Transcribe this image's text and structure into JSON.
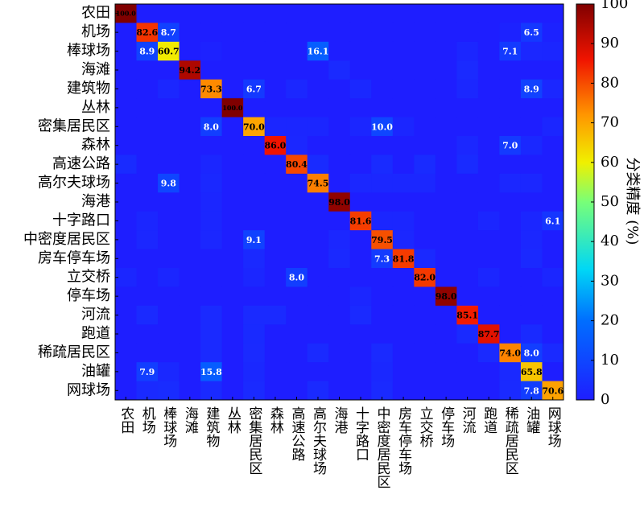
{
  "chart_data": {
    "type": "heatmap",
    "categories": [
      "农田",
      "机场",
      "棒球场",
      "海滩",
      "建筑物",
      "丛林",
      "密集居民区",
      "森林",
      "高速公路",
      "高尔夫球场",
      "海港",
      "十字路口",
      "中密度居民区",
      "房车停车场",
      "立交桥",
      "停车场",
      "河流",
      "跑道",
      "稀疏居民区",
      "油罐",
      "网球场"
    ],
    "values": [
      [
        100.0,
        0,
        0,
        0,
        0,
        0,
        0,
        0,
        0,
        0,
        0,
        0,
        0,
        0,
        0,
        0,
        0,
        0,
        0,
        0,
        0
      ],
      [
        0,
        82.6,
        8.7,
        0,
        0,
        0,
        0,
        0,
        0,
        0,
        0,
        0,
        0,
        0,
        0,
        0,
        0,
        0,
        1.1,
        6.5,
        1.1
      ],
      [
        0,
        8.9,
        60.7,
        0,
        1.0,
        0,
        0,
        0,
        0,
        16.1,
        0,
        0,
        0,
        0,
        0,
        0,
        2.0,
        0,
        7.1,
        2.2,
        2.0
      ],
      [
        0,
        0,
        0,
        94.2,
        0,
        0,
        0,
        0,
        0,
        0,
        2.9,
        0,
        0,
        0,
        0,
        0,
        2.9,
        0,
        0,
        0,
        0
      ],
      [
        0,
        0,
        2.2,
        0,
        73.3,
        0,
        6.7,
        0,
        2.2,
        0,
        0,
        2.5,
        0,
        0,
        0,
        0,
        2.2,
        0,
        0,
        8.9,
        2.2
      ],
      [
        0,
        0,
        0,
        0,
        0,
        100.0,
        0,
        0,
        0,
        0,
        0,
        0,
        0,
        0,
        0,
        0,
        0,
        0,
        0,
        0,
        0
      ],
      [
        0,
        0,
        0,
        0,
        8.0,
        0,
        70.0,
        2.0,
        2.0,
        2.0,
        0,
        2.0,
        10.0,
        2.0,
        0,
        0,
        0,
        0,
        0,
        0,
        2.0
      ],
      [
        0,
        0,
        0,
        0,
        0,
        0,
        0,
        86.0,
        2.3,
        0,
        0,
        0,
        0,
        0,
        0,
        0,
        2.3,
        0,
        7.0,
        2.4,
        0
      ],
      [
        3.3,
        0,
        0,
        0,
        2.1,
        0,
        0,
        0,
        80.4,
        3.3,
        0,
        0,
        3.3,
        0,
        3.3,
        0,
        3.3,
        0,
        0,
        0,
        0
      ],
      [
        0,
        0,
        9.8,
        0,
        2.5,
        0,
        0,
        0,
        0,
        74.5,
        0,
        2.2,
        2.2,
        2.2,
        2.2,
        0,
        0,
        0,
        2.2,
        2.2,
        0
      ],
      [
        0,
        0,
        0,
        0,
        2.0,
        0,
        0,
        0,
        0,
        0,
        98.0,
        0,
        0,
        0,
        0,
        0,
        0,
        0,
        0,
        0,
        0
      ],
      [
        0,
        2.1,
        0,
        0,
        2.1,
        0,
        0,
        0,
        0,
        0,
        0,
        81.6,
        2.1,
        2.0,
        0,
        0,
        0,
        2.0,
        0,
        2.0,
        6.1
      ],
      [
        0,
        2.3,
        0,
        0,
        2.3,
        0,
        9.1,
        0,
        0,
        0,
        2.3,
        0,
        79.5,
        2.3,
        0,
        0,
        0,
        0,
        0,
        2.2,
        0
      ],
      [
        0,
        0,
        0,
        0,
        0,
        0,
        2.7,
        0,
        0,
        0,
        2.7,
        0,
        7.3,
        81.8,
        2.8,
        0,
        0,
        0,
        0,
        2.7,
        0
      ],
      [
        2.0,
        0,
        2.0,
        0,
        0,
        0,
        2.0,
        0,
        8.0,
        0,
        0,
        0,
        0,
        0,
        82.0,
        0,
        0,
        2.0,
        0,
        0,
        2.0
      ],
      [
        0,
        0,
        0,
        0,
        0,
        0,
        0,
        0,
        0,
        0,
        0,
        2.0,
        0,
        0,
        0,
        98.0,
        0,
        0,
        0,
        0,
        0
      ],
      [
        0,
        3.0,
        0,
        0,
        3.0,
        0,
        3.0,
        3.0,
        0,
        0,
        0,
        3.0,
        0,
        0,
        0,
        0,
        85.1,
        0,
        0,
        0,
        0
      ],
      [
        0,
        0,
        0,
        0,
        3.0,
        0,
        3.1,
        0,
        0,
        0,
        0,
        0,
        0,
        0,
        0,
        0,
        3.1,
        87.7,
        0,
        3.1,
        0
      ],
      [
        0,
        0,
        0,
        0,
        3.0,
        0,
        3.0,
        0,
        0,
        3.0,
        0,
        0,
        3.0,
        0,
        0,
        0,
        0,
        3.0,
        74.0,
        8.0,
        3.0
      ],
      [
        0,
        7.9,
        2.6,
        0,
        15.8,
        0,
        2.6,
        0,
        0,
        0,
        0,
        0,
        2.6,
        0,
        0,
        0,
        0,
        0,
        2.7,
        65.8,
        0
      ],
      [
        0,
        3.0,
        3.6,
        0,
        3.0,
        0,
        3.0,
        0,
        0,
        3.0,
        0,
        0,
        3.0,
        0,
        0,
        0,
        0,
        0,
        3.0,
        7.8,
        70.6
      ]
    ],
    "value_labels": [
      [
        "100.0",
        null,
        null,
        null,
        null,
        null,
        null,
        null,
        null,
        null,
        null,
        null,
        null,
        null,
        null,
        null,
        null,
        null,
        null,
        null,
        null
      ],
      [
        null,
        "82.6",
        "8.7",
        null,
        null,
        null,
        null,
        null,
        null,
        null,
        null,
        null,
        null,
        null,
        null,
        null,
        null,
        null,
        null,
        "6.5",
        null
      ],
      [
        null,
        "8.9",
        "60.7",
        null,
        null,
        null,
        null,
        null,
        null,
        "16.1",
        null,
        null,
        null,
        null,
        null,
        null,
        null,
        null,
        "7.1",
        null,
        null
      ],
      [
        null,
        null,
        null,
        "94.2",
        null,
        null,
        null,
        null,
        null,
        null,
        null,
        null,
        null,
        null,
        null,
        null,
        null,
        null,
        null,
        null,
        null
      ],
      [
        null,
        null,
        null,
        null,
        "73.3",
        null,
        "6.7",
        null,
        null,
        null,
        null,
        null,
        null,
        null,
        null,
        null,
        null,
        null,
        null,
        "8.9",
        null
      ],
      [
        null,
        null,
        null,
        null,
        null,
        "100.0",
        null,
        null,
        null,
        null,
        null,
        null,
        null,
        null,
        null,
        null,
        null,
        null,
        null,
        null,
        null
      ],
      [
        null,
        null,
        null,
        null,
        "8.0",
        null,
        "70.0",
        null,
        null,
        null,
        null,
        null,
        "10.0",
        null,
        null,
        null,
        null,
        null,
        null,
        null,
        null
      ],
      [
        null,
        null,
        null,
        null,
        null,
        null,
        null,
        "86.0",
        null,
        null,
        null,
        null,
        null,
        null,
        null,
        null,
        null,
        null,
        "7.0",
        null,
        null
      ],
      [
        null,
        null,
        null,
        null,
        null,
        null,
        null,
        null,
        "80.4",
        null,
        null,
        null,
        null,
        null,
        null,
        null,
        null,
        null,
        null,
        null,
        null
      ],
      [
        null,
        null,
        "9.8",
        null,
        null,
        null,
        null,
        null,
        null,
        "74.5",
        null,
        null,
        null,
        null,
        null,
        null,
        null,
        null,
        null,
        null,
        null
      ],
      [
        null,
        null,
        null,
        null,
        null,
        null,
        null,
        null,
        null,
        null,
        "98.0",
        null,
        null,
        null,
        null,
        null,
        null,
        null,
        null,
        null,
        null
      ],
      [
        null,
        null,
        null,
        null,
        null,
        null,
        null,
        null,
        null,
        null,
        null,
        "81.6",
        null,
        null,
        null,
        null,
        null,
        null,
        null,
        null,
        "6.1"
      ],
      [
        null,
        null,
        null,
        null,
        null,
        null,
        "9.1",
        null,
        null,
        null,
        null,
        null,
        "79.5",
        null,
        null,
        null,
        null,
        null,
        null,
        null,
        null
      ],
      [
        null,
        null,
        null,
        null,
        null,
        null,
        null,
        null,
        null,
        null,
        null,
        null,
        "7.3",
        "81.8",
        null,
        null,
        null,
        null,
        null,
        null,
        null
      ],
      [
        null,
        null,
        null,
        null,
        null,
        null,
        null,
        null,
        "8.0",
        null,
        null,
        null,
        null,
        null,
        "82.0",
        null,
        null,
        null,
        null,
        null,
        null
      ],
      [
        null,
        null,
        null,
        null,
        null,
        null,
        null,
        null,
        null,
        null,
        null,
        null,
        null,
        null,
        null,
        "98.0",
        null,
        null,
        null,
        null,
        null
      ],
      [
        null,
        null,
        null,
        null,
        null,
        null,
        null,
        null,
        null,
        null,
        null,
        null,
        null,
        null,
        null,
        null,
        "85.1",
        null,
        null,
        null,
        null
      ],
      [
        null,
        null,
        null,
        null,
        null,
        null,
        null,
        null,
        null,
        null,
        null,
        null,
        null,
        null,
        null,
        null,
        null,
        "87.7",
        null,
        null,
        null
      ],
      [
        null,
        null,
        null,
        null,
        null,
        null,
        null,
        null,
        null,
        null,
        null,
        null,
        null,
        null,
        null,
        null,
        null,
        null,
        "74.0",
        "8.0",
        null
      ],
      [
        null,
        "7.9",
        null,
        null,
        "15.8",
        null,
        null,
        null,
        null,
        null,
        null,
        null,
        null,
        null,
        null,
        null,
        null,
        null,
        null,
        "65.8",
        null
      ],
      [
        null,
        null,
        null,
        null,
        null,
        null,
        null,
        null,
        null,
        null,
        null,
        null,
        null,
        null,
        null,
        null,
        null,
        null,
        null,
        "7.8",
        "70.6"
      ]
    ],
    "colorbar_label": "分类精度 (%)",
    "clim": [
      0,
      100
    ],
    "cticks": [
      0,
      10,
      20,
      30,
      40,
      50,
      60,
      70,
      80,
      90,
      100
    ]
  }
}
